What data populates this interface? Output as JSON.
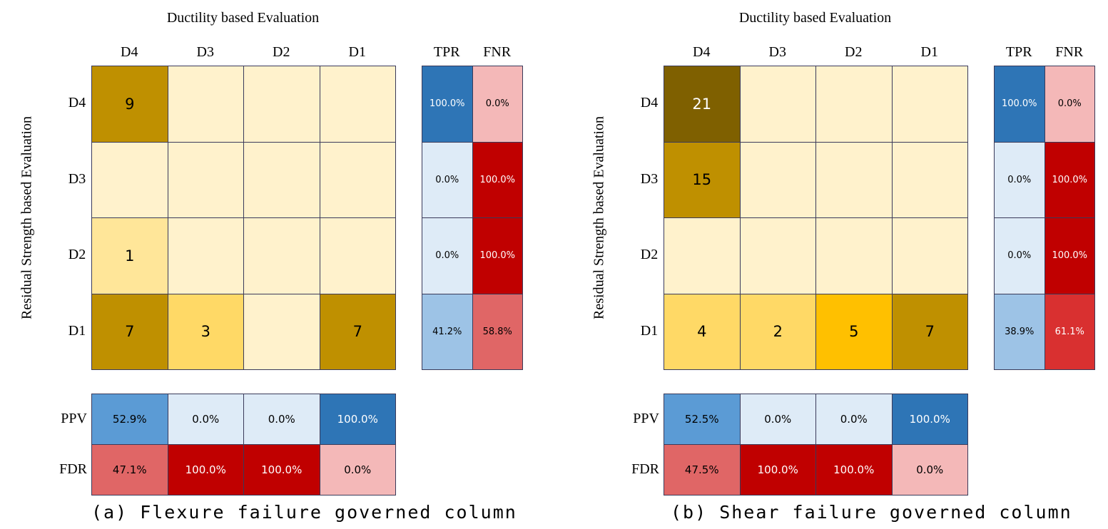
{
  "chart_data": [
    {
      "type": "heatmap",
      "title": "Ductility based Evaluation",
      "ylabel": "Residual Strength based Evaluation",
      "caption": "(a) Flexure failure governed column",
      "col_labels": [
        "D4",
        "D3",
        "D2",
        "D1"
      ],
      "row_labels": [
        "D4",
        "D3",
        "D2",
        "D1"
      ],
      "matrix": [
        [
          9,
          null,
          null,
          null
        ],
        [
          null,
          null,
          null,
          null
        ],
        [
          1,
          null,
          null,
          null
        ],
        [
          7,
          3,
          null,
          7
        ]
      ],
      "rate_headers": [
        "TPR",
        "FNR"
      ],
      "TPR": [
        "100.0%",
        "0.0%",
        "0.0%",
        "41.2%"
      ],
      "FNR": [
        "0.0%",
        "100.0%",
        "100.0%",
        "58.8%"
      ],
      "bottom_labels": [
        "PPV",
        "FDR"
      ],
      "PPV": [
        "52.9%",
        "0.0%",
        "0.0%",
        "100.0%"
      ],
      "FDR": [
        "47.1%",
        "100.0%",
        "100.0%",
        "0.0%"
      ]
    },
    {
      "type": "heatmap",
      "title": "Ductility based Evaluation",
      "ylabel": "Residual Strength based Evaluation",
      "caption": "(b) Shear failure governed column",
      "col_labels": [
        "D4",
        "D3",
        "D2",
        "D1"
      ],
      "row_labels": [
        "D4",
        "D3",
        "D2",
        "D1"
      ],
      "matrix": [
        [
          21,
          null,
          null,
          null
        ],
        [
          15,
          null,
          null,
          null
        ],
        [
          null,
          null,
          null,
          null
        ],
        [
          4,
          2,
          5,
          7
        ]
      ],
      "rate_headers": [
        "TPR",
        "FNR"
      ],
      "TPR": [
        "100.0%",
        "0.0%",
        "0.0%",
        "38.9%"
      ],
      "FNR": [
        "0.0%",
        "100.0%",
        "100.0%",
        "61.1%"
      ],
      "bottom_labels": [
        "PPV",
        "FDR"
      ],
      "PPV": [
        "52.5%",
        "0.0%",
        "0.0%",
        "100.0%"
      ],
      "FDR": [
        "47.5%",
        "100.0%",
        "100.0%",
        "0.0%"
      ]
    }
  ],
  "colors": {
    "count_scale": [
      "#fff2cc",
      "#ffe699",
      "#ffd966",
      "#ffc000",
      "#bf9000",
      "#7f6000"
    ],
    "positive_scale": [
      "#deebf7",
      "#9dc3e6",
      "#5b9bd5",
      "#2e75b6"
    ],
    "negative_scale": [
      "#f4b8b8",
      "#e06666",
      "#d93030",
      "#c00000"
    ]
  }
}
